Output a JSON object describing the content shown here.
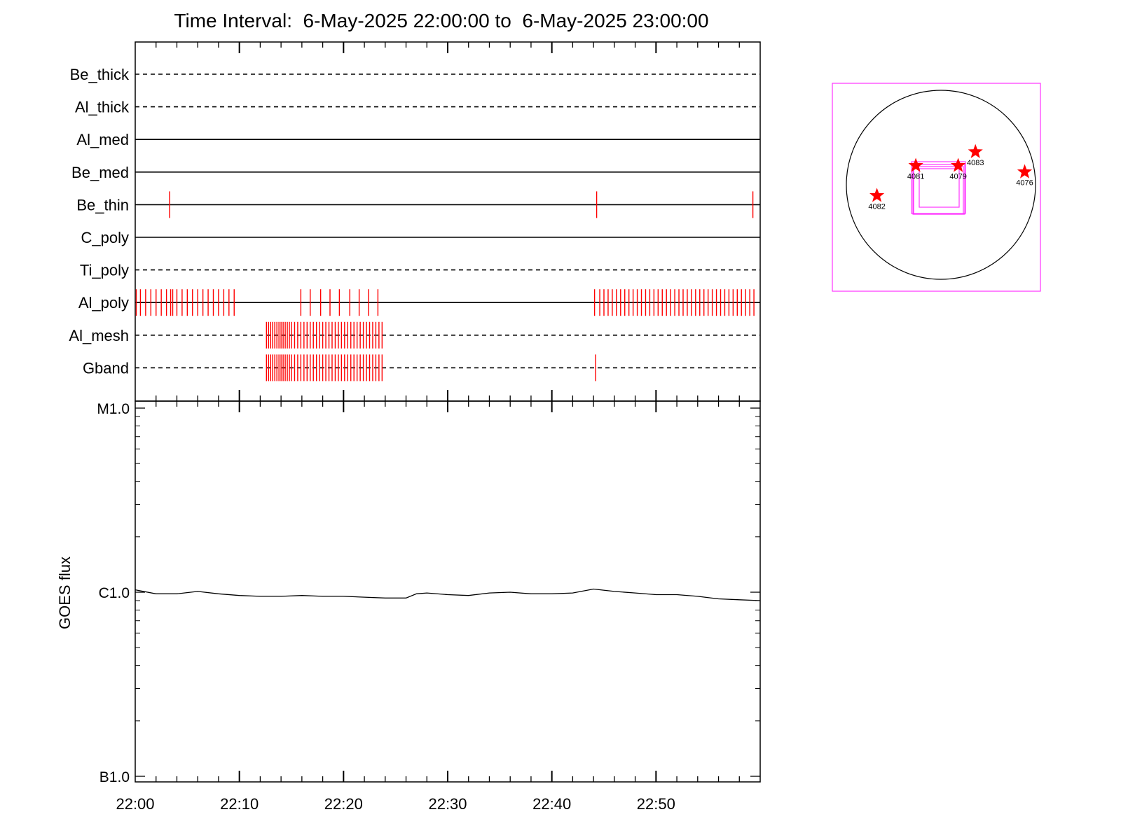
{
  "title": "Time Interval:  6-May-2025 22:00:00 to  6-May-2025 23:00:00",
  "colors": {
    "axis": "#000000",
    "event": "#ff0000",
    "curve": "#000000",
    "fov": "#ff33ff",
    "limb": "#000000",
    "star": "#ff0000"
  },
  "chart_data": [
    {
      "type": "timeline",
      "x_start": "22:00",
      "x_end": "23:00",
      "x_tick_labels": [
        "22:00",
        "22:10",
        "22:20",
        "22:30",
        "22:40",
        "22:50"
      ],
      "rows": [
        {
          "name": "Be_thick",
          "style": "dashed",
          "events_min": []
        },
        {
          "name": "Al_thick",
          "style": "dashed",
          "events_min": []
        },
        {
          "name": "Al_med",
          "style": "solid",
          "events_min": []
        },
        {
          "name": "Be_med",
          "style": "solid",
          "events_min": []
        },
        {
          "name": "Be_thin",
          "style": "solid",
          "events_min": [
            3.3,
            44.3,
            59.3
          ]
        },
        {
          "name": "C_poly",
          "style": "solid",
          "events_min": []
        },
        {
          "name": "Ti_poly",
          "style": "dashed",
          "events_min": []
        },
        {
          "name": "Al_poly",
          "style": "solid",
          "events_min": [
            0.1,
            0.5,
            1.0,
            1.5,
            2.0,
            2.5,
            3.0,
            3.4,
            3.6,
            4.0,
            4.5,
            5.0,
            5.5,
            6.0,
            6.5,
            7.0,
            7.5,
            8.0,
            8.5,
            9.0,
            9.5,
            15.9,
            16.8,
            17.8,
            18.7,
            19.6,
            20.6,
            21.5,
            22.4,
            23.3,
            44.1,
            44.6,
            45.0,
            45.4,
            45.8,
            46.2,
            46.6,
            47.0,
            47.4,
            47.8,
            48.2,
            48.6,
            49.0,
            49.4,
            49.8,
            50.2,
            50.6,
            51.0,
            51.4,
            51.8,
            52.2,
            52.6,
            53.0,
            53.4,
            53.8,
            54.2,
            54.6,
            55.0,
            55.4,
            55.8,
            56.2,
            56.6,
            57.0,
            57.4,
            57.8,
            58.2,
            58.6,
            59.0,
            59.4
          ]
        },
        {
          "name": "Al_mesh",
          "style": "dashed",
          "events_min": [
            12.6,
            12.8,
            13.0,
            13.2,
            13.4,
            13.6,
            13.8,
            14.0,
            14.2,
            14.4,
            14.6,
            14.8,
            15.0,
            15.3,
            15.6,
            15.9,
            16.2,
            16.5,
            16.8,
            17.1,
            17.4,
            17.7,
            18.0,
            18.3,
            18.6,
            18.9,
            19.2,
            19.5,
            19.8,
            20.1,
            20.4,
            20.7,
            21.0,
            21.3,
            21.6,
            21.9,
            22.2,
            22.5,
            22.8,
            23.1,
            23.4,
            23.7
          ]
        },
        {
          "name": "Gband",
          "style": "dashed",
          "events_min": [
            12.6,
            12.8,
            13.0,
            13.2,
            13.4,
            13.6,
            13.8,
            14.0,
            14.2,
            14.4,
            14.6,
            14.8,
            15.0,
            15.3,
            15.6,
            15.9,
            16.2,
            16.5,
            16.8,
            17.1,
            17.4,
            17.7,
            18.0,
            18.3,
            18.6,
            18.9,
            19.2,
            19.5,
            19.8,
            20.1,
            20.4,
            20.7,
            21.0,
            21.3,
            21.6,
            21.9,
            22.2,
            22.5,
            22.8,
            23.1,
            23.4,
            23.7,
            44.2
          ]
        }
      ]
    },
    {
      "type": "line",
      "ylabel": "GOES flux",
      "yscale": "log",
      "ylim": [
        1e-07,
        1e-05
      ],
      "y_tick_labels": [
        {
          "value": 1e-05,
          "label": "M1.0"
        },
        {
          "value": 1e-06,
          "label": "C1.0"
        },
        {
          "value": 1e-07,
          "label": "B1.0"
        }
      ],
      "x_unit": "minutes after 22:00",
      "x": [
        0,
        2,
        4,
        6,
        8,
        10,
        12,
        14,
        16,
        18,
        20,
        22,
        24,
        26,
        27,
        28,
        30,
        32,
        34,
        36,
        38,
        40,
        42,
        44,
        46,
        48,
        50,
        52,
        54,
        56,
        58,
        60
      ],
      "y": [
        1.03e-06,
        9.8e-07,
        9.8e-07,
        1.01e-06,
        9.8e-07,
        9.6e-07,
        9.5e-07,
        9.5e-07,
        9.6e-07,
        9.5e-07,
        9.5e-07,
        9.4e-07,
        9.3e-07,
        9.3e-07,
        9.8e-07,
        9.9e-07,
        9.7e-07,
        9.6e-07,
        9.9e-07,
        1e-06,
        9.8e-07,
        9.8e-07,
        9.9e-07,
        1.04e-06,
        1.01e-06,
        9.9e-07,
        9.7e-07,
        9.7e-07,
        9.5e-07,
        9.2e-07,
        9.1e-07,
        9e-07
      ]
    },
    {
      "type": "scatter",
      "description_units": "arcsec on solar disk (approx.)",
      "points": [
        {
          "label": "4081",
          "x": -255,
          "y": 195
        },
        {
          "label": "4079",
          "x": 175,
          "y": 195
        },
        {
          "label": "4083",
          "x": 350,
          "y": 335
        },
        {
          "label": "4076",
          "x": 850,
          "y": 130
        },
        {
          "label": "4082",
          "x": -650,
          "y": -110
        }
      ]
    }
  ]
}
